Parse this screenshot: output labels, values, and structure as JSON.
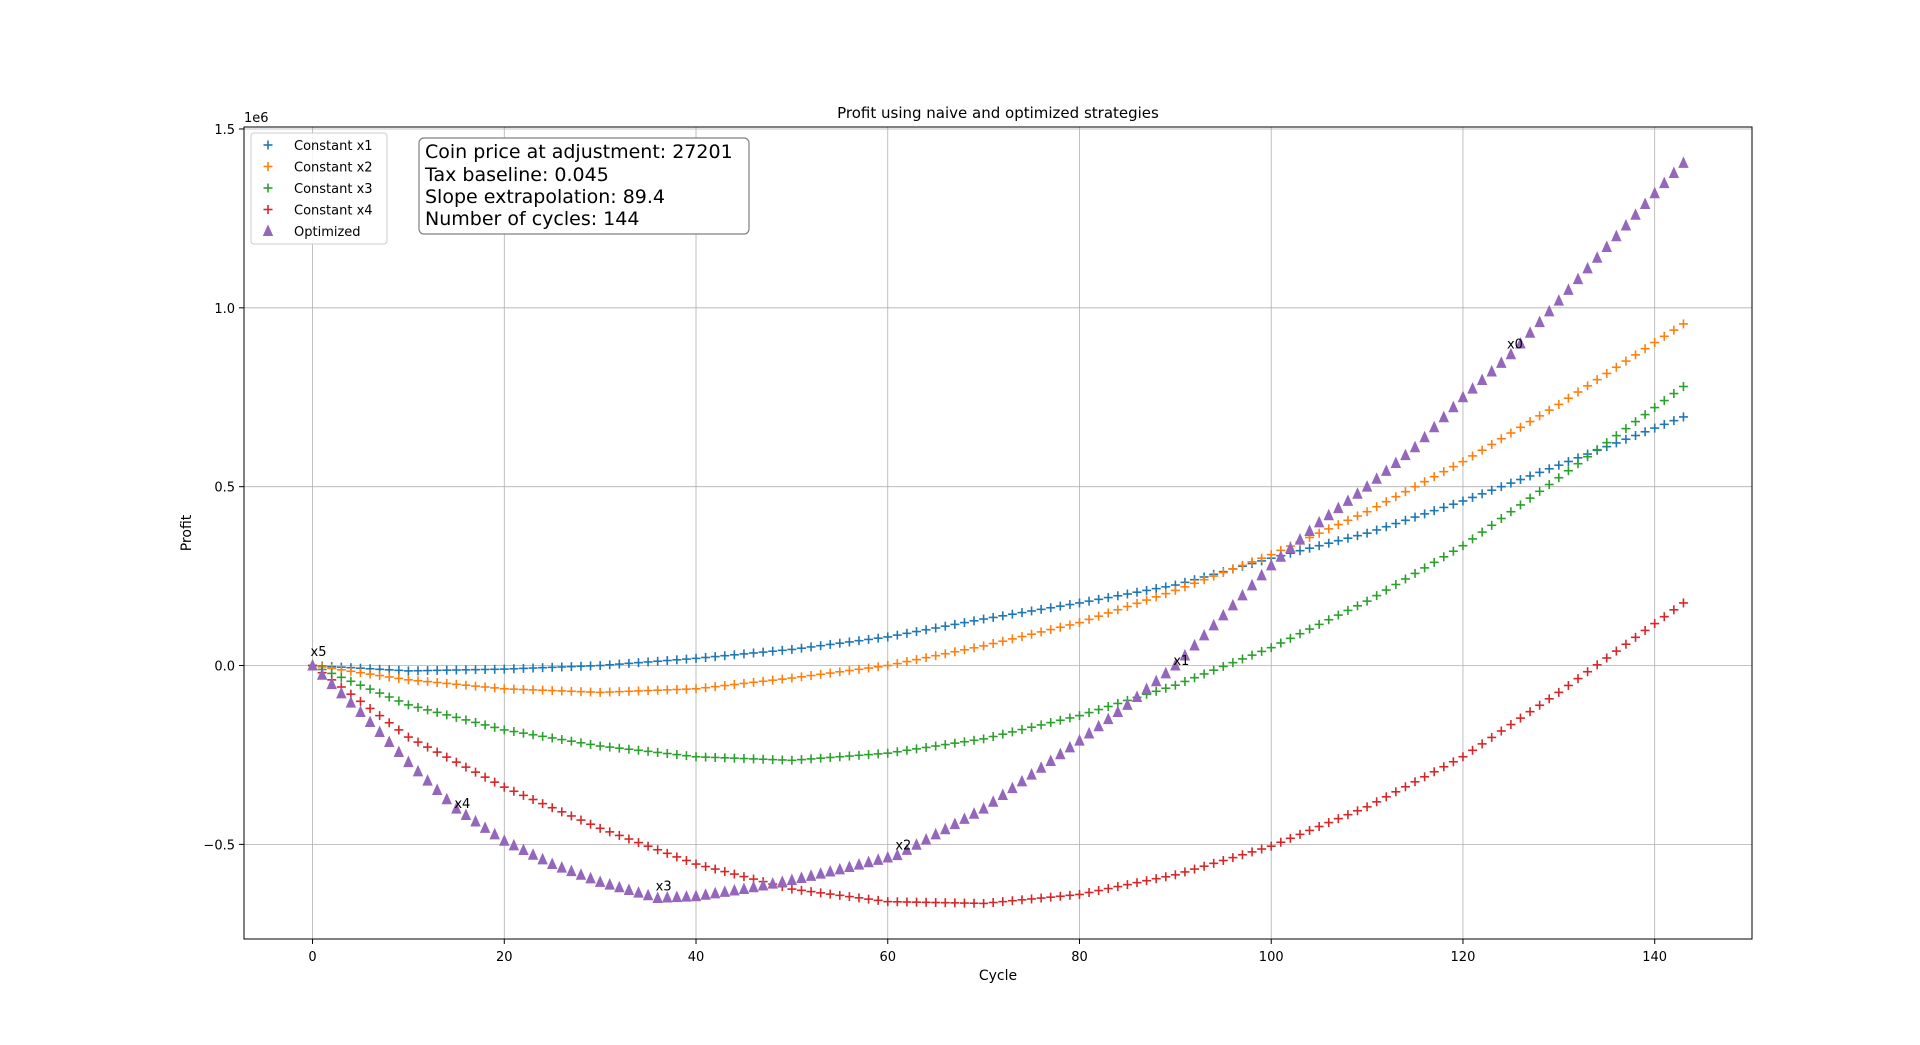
{
  "chart_data": {
    "type": "scatter",
    "title": "Profit using naive and optimized strategies",
    "xlabel": "Cycle",
    "ylabel": "Profit",
    "y_offset_label": "1e6",
    "xlim": [
      -7.15,
      150.15
    ],
    "ylim": [
      -0.7645,
      1.5055
    ],
    "xticks": [
      0,
      20,
      40,
      60,
      80,
      100,
      120,
      140
    ],
    "xtick_labels": [
      "0",
      "20",
      "40",
      "60",
      "80",
      "100",
      "120",
      "140"
    ],
    "yticks": [
      -0.5,
      0.0,
      0.5,
      1.0,
      1.5
    ],
    "ytick_labels": [
      "−0.5",
      "0.0",
      "0.5",
      "1.0",
      "1.5"
    ],
    "grid": true,
    "legend_position": "upper-left",
    "num_points": 144,
    "series": [
      {
        "name": "Constant x1",
        "marker": "plus",
        "color": "#1f77b4",
        "keypoints": [
          [
            0,
            0.0
          ],
          [
            10,
            -0.015
          ],
          [
            20,
            -0.01
          ],
          [
            30,
            0.0
          ],
          [
            40,
            0.02
          ],
          [
            50,
            0.045
          ],
          [
            60,
            0.08
          ],
          [
            70,
            0.13
          ],
          [
            80,
            0.175
          ],
          [
            90,
            0.225
          ],
          [
            100,
            0.3
          ],
          [
            110,
            0.37
          ],
          [
            120,
            0.46
          ],
          [
            130,
            0.56
          ],
          [
            143,
            0.695
          ]
        ]
      },
      {
        "name": "Constant x2",
        "marker": "plus",
        "color": "#ff7f0e",
        "keypoints": [
          [
            0,
            0.0
          ],
          [
            10,
            -0.04
          ],
          [
            20,
            -0.065
          ],
          [
            30,
            -0.075
          ],
          [
            40,
            -0.065
          ],
          [
            50,
            -0.035
          ],
          [
            60,
            0.0
          ],
          [
            70,
            0.055
          ],
          [
            80,
            0.12
          ],
          [
            90,
            0.21
          ],
          [
            100,
            0.31
          ],
          [
            110,
            0.43
          ],
          [
            120,
            0.57
          ],
          [
            130,
            0.73
          ],
          [
            143,
            0.955
          ]
        ]
      },
      {
        "name": "Constant x3",
        "marker": "plus",
        "color": "#2ca02c",
        "keypoints": [
          [
            0,
            0.0
          ],
          [
            10,
            -0.11
          ],
          [
            20,
            -0.18
          ],
          [
            30,
            -0.225
          ],
          [
            40,
            -0.255
          ],
          [
            50,
            -0.265
          ],
          [
            60,
            -0.245
          ],
          [
            70,
            -0.205
          ],
          [
            80,
            -0.14
          ],
          [
            90,
            -0.055
          ],
          [
            100,
            0.05
          ],
          [
            110,
            0.18
          ],
          [
            120,
            0.335
          ],
          [
            130,
            0.525
          ],
          [
            143,
            0.78
          ]
        ]
      },
      {
        "name": "Constant x4",
        "marker": "plus",
        "color": "#d62728",
        "keypoints": [
          [
            0,
            0.0
          ],
          [
            10,
            -0.2
          ],
          [
            20,
            -0.34
          ],
          [
            30,
            -0.455
          ],
          [
            40,
            -0.555
          ],
          [
            50,
            -0.625
          ],
          [
            60,
            -0.66
          ],
          [
            70,
            -0.665
          ],
          [
            80,
            -0.64
          ],
          [
            90,
            -0.585
          ],
          [
            100,
            -0.505
          ],
          [
            110,
            -0.395
          ],
          [
            120,
            -0.255
          ],
          [
            130,
            -0.075
          ],
          [
            143,
            0.175
          ]
        ]
      },
      {
        "name": "Optimized",
        "marker": "triangle",
        "color": "#9467bd",
        "keypoints": [
          [
            0,
            0.0
          ],
          [
            5,
            -0.13
          ],
          [
            10,
            -0.27
          ],
          [
            15,
            -0.4
          ],
          [
            20,
            -0.49
          ],
          [
            25,
            -0.555
          ],
          [
            30,
            -0.605
          ],
          [
            36,
            -0.65
          ],
          [
            40,
            -0.645
          ],
          [
            45,
            -0.625
          ],
          [
            50,
            -0.6
          ],
          [
            55,
            -0.57
          ],
          [
            61,
            -0.53
          ],
          [
            70,
            -0.4
          ],
          [
            80,
            -0.21
          ],
          [
            85,
            -0.11
          ],
          [
            90,
            0.0
          ],
          [
            95,
            0.14
          ],
          [
            100,
            0.28
          ],
          [
            105,
            0.4
          ],
          [
            110,
            0.5
          ],
          [
            115,
            0.61
          ],
          [
            120,
            0.75
          ],
          [
            125,
            0.87
          ],
          [
            130,
            1.02
          ],
          [
            135,
            1.17
          ],
          [
            140,
            1.32
          ],
          [
            143,
            1.405
          ]
        ]
      }
    ],
    "annotations": [
      {
        "text": "x0",
        "x": 124.8,
        "y": 0.9
      },
      {
        "text": "x1",
        "x": 90.0,
        "y": 0.015
      },
      {
        "text": "x2",
        "x": 61.0,
        "y": -0.5
      },
      {
        "text": "x3",
        "x": 36.0,
        "y": -0.615
      },
      {
        "text": "x4",
        "x": 15.0,
        "y": -0.385
      },
      {
        "text": "x5",
        "x": 0.0,
        "y": 0.04
      }
    ],
    "info_box": {
      "lines": [
        "Coin price at adjustment: 27201",
        "Tax baseline: 0.045",
        "Slope extrapolation: 89.4",
        "Number of cycles: 144"
      ]
    }
  }
}
